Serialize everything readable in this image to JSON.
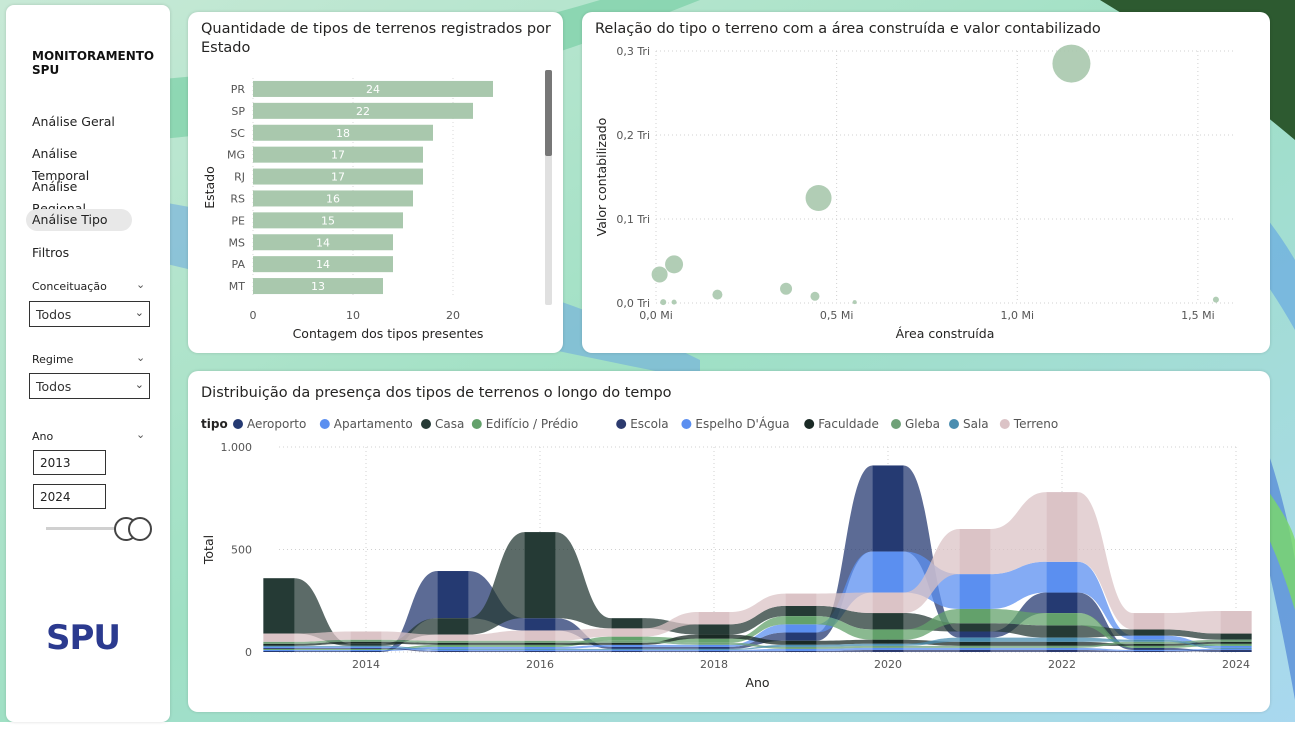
{
  "sidebar": {
    "title": "MONITORAMENTO SPU",
    "nav": [
      "Análise Geral",
      "Análise Temporal",
      "Análise Regional",
      "Análise Tipo",
      "Filtros"
    ],
    "active": "Análise Tipo",
    "filters": {
      "conceituacao": {
        "label": "Conceituação",
        "value": "Todos"
      },
      "regime": {
        "label": "Regime",
        "value": "Todos"
      },
      "ano": {
        "label": "Ano",
        "start": "2013",
        "end": "2024"
      }
    },
    "logo_text": "SPU"
  },
  "bar_panel": {
    "title": "Quantidade de tipos de terrenos registrados por Estado"
  },
  "scatter_panel": {
    "title": "Relação do tipo o terreno com a área construída e valor contabilizado"
  },
  "ribbon_panel": {
    "title": "Distribuição da presença dos tipos de terrenos o longo do tempo",
    "legend_title": "tipo"
  },
  "colors": {
    "bar": "#a9c8ad",
    "bubble": "#a9c8ad"
  },
  "chart_data": [
    {
      "type": "bar",
      "orientation": "horizontal",
      "categories": [
        "PR",
        "SP",
        "SC",
        "MG",
        "RJ",
        "RS",
        "PE",
        "MS",
        "PA",
        "MT"
      ],
      "values": [
        24,
        22,
        18,
        17,
        17,
        16,
        15,
        14,
        14,
        13
      ],
      "xlabel": "Contagem dos tipos presentes",
      "ylabel": "Estado",
      "xlim": [
        0,
        27
      ],
      "xticks": [
        0,
        10,
        20
      ],
      "grid": true
    },
    {
      "type": "scatter",
      "xlabel": "Área construída",
      "ylabel": "Valor contabilizado",
      "xlim": [
        0,
        1.6
      ],
      "ylim": [
        0,
        0.3
      ],
      "xticks": [
        {
          "v": 0,
          "label": "0,0 Mi"
        },
        {
          "v": 0.5,
          "label": "0,5 Mi"
        },
        {
          "v": 1.0,
          "label": "1,0 Mi"
        },
        {
          "v": 1.5,
          "label": "1,5 Mi"
        }
      ],
      "yticks": [
        {
          "v": 0,
          "label": "0,0 Tri"
        },
        {
          "v": 0.1,
          "label": "0,1 Tri"
        },
        {
          "v": 0.2,
          "label": "0,2 Tri"
        },
        {
          "v": 0.3,
          "label": "0,3 Tri"
        }
      ],
      "points": [
        {
          "x": 1.15,
          "y": 0.285,
          "size": 19
        },
        {
          "x": 0.45,
          "y": 0.125,
          "size": 13
        },
        {
          "x": 0.05,
          "y": 0.046,
          "size": 9
        },
        {
          "x": 0.01,
          "y": 0.034,
          "size": 8
        },
        {
          "x": 0.36,
          "y": 0.017,
          "size": 6
        },
        {
          "x": 0.17,
          "y": 0.01,
          "size": 5
        },
        {
          "x": 0.44,
          "y": 0.008,
          "size": 4.5
        },
        {
          "x": 0.02,
          "y": 0.001,
          "size": 3
        },
        {
          "x": 0.05,
          "y": 0.001,
          "size": 2.5
        },
        {
          "x": 0.55,
          "y": 0.001,
          "size": 2
        },
        {
          "x": 1.55,
          "y": 0.004,
          "size": 3
        }
      ],
      "grid": true
    },
    {
      "type": "area",
      "subtype": "ribbon",
      "xlabel": "Ano",
      "ylabel": "Total",
      "x": [
        2013,
        2014,
        2015,
        2016,
        2017,
        2018,
        2019,
        2020,
        2021,
        2022,
        2023,
        2024
      ],
      "xticks": [
        2014,
        2016,
        2018,
        2020,
        2022,
        2024
      ],
      "ylim": [
        0,
        1000
      ],
      "yticks": [
        {
          "v": 0,
          "label": "0"
        },
        {
          "v": 500,
          "label": "500"
        },
        {
          "v": 1000,
          "label": "1.000"
        }
      ],
      "series": [
        {
          "name": "Aeroporto",
          "color": "#253a72",
          "values": [
            5,
            5,
            230,
            60,
            10,
            10,
            40,
            420,
            30,
            100,
            10,
            5
          ]
        },
        {
          "name": "Apartamento",
          "color": "#5b8ff0",
          "values": [
            5,
            5,
            10,
            10,
            10,
            10,
            40,
            200,
            170,
            150,
            20,
            10
          ]
        },
        {
          "name": "Casa",
          "color": "#253a35",
          "values": [
            270,
            10,
            80,
            420,
            50,
            50,
            50,
            80,
            40,
            60,
            30,
            30
          ]
        },
        {
          "name": "Edifício / Prédio",
          "color": "#63a16b",
          "values": [
            5,
            5,
            10,
            10,
            20,
            20,
            40,
            50,
            70,
            60,
            10,
            10
          ]
        },
        {
          "name": "Escola",
          "color": "#2c3a6e",
          "values": [
            5,
            5,
            5,
            5,
            5,
            5,
            5,
            10,
            10,
            10,
            5,
            5
          ]
        },
        {
          "name": "Espelho D'Água",
          "color": "#5b8ff0",
          "values": [
            5,
            5,
            5,
            5,
            5,
            5,
            10,
            10,
            10,
            10,
            5,
            5
          ]
        },
        {
          "name": "Faculdade",
          "color": "#1a2a25",
          "values": [
            10,
            10,
            10,
            10,
            10,
            20,
            20,
            20,
            20,
            20,
            10,
            10
          ]
        },
        {
          "name": "Gleba",
          "color": "#6fa178",
          "values": [
            10,
            10,
            10,
            10,
            10,
            10,
            10,
            10,
            10,
            10,
            10,
            10
          ]
        },
        {
          "name": "Sala",
          "color": "#4a8db0",
          "values": [
            5,
            5,
            5,
            5,
            5,
            5,
            10,
            10,
            20,
            20,
            10,
            5
          ]
        },
        {
          "name": "Terreno",
          "color": "#dbc3c6",
          "values": [
            40,
            40,
            30,
            50,
            40,
            60,
            60,
            100,
            220,
            340,
            80,
            110
          ]
        }
      ]
    }
  ]
}
